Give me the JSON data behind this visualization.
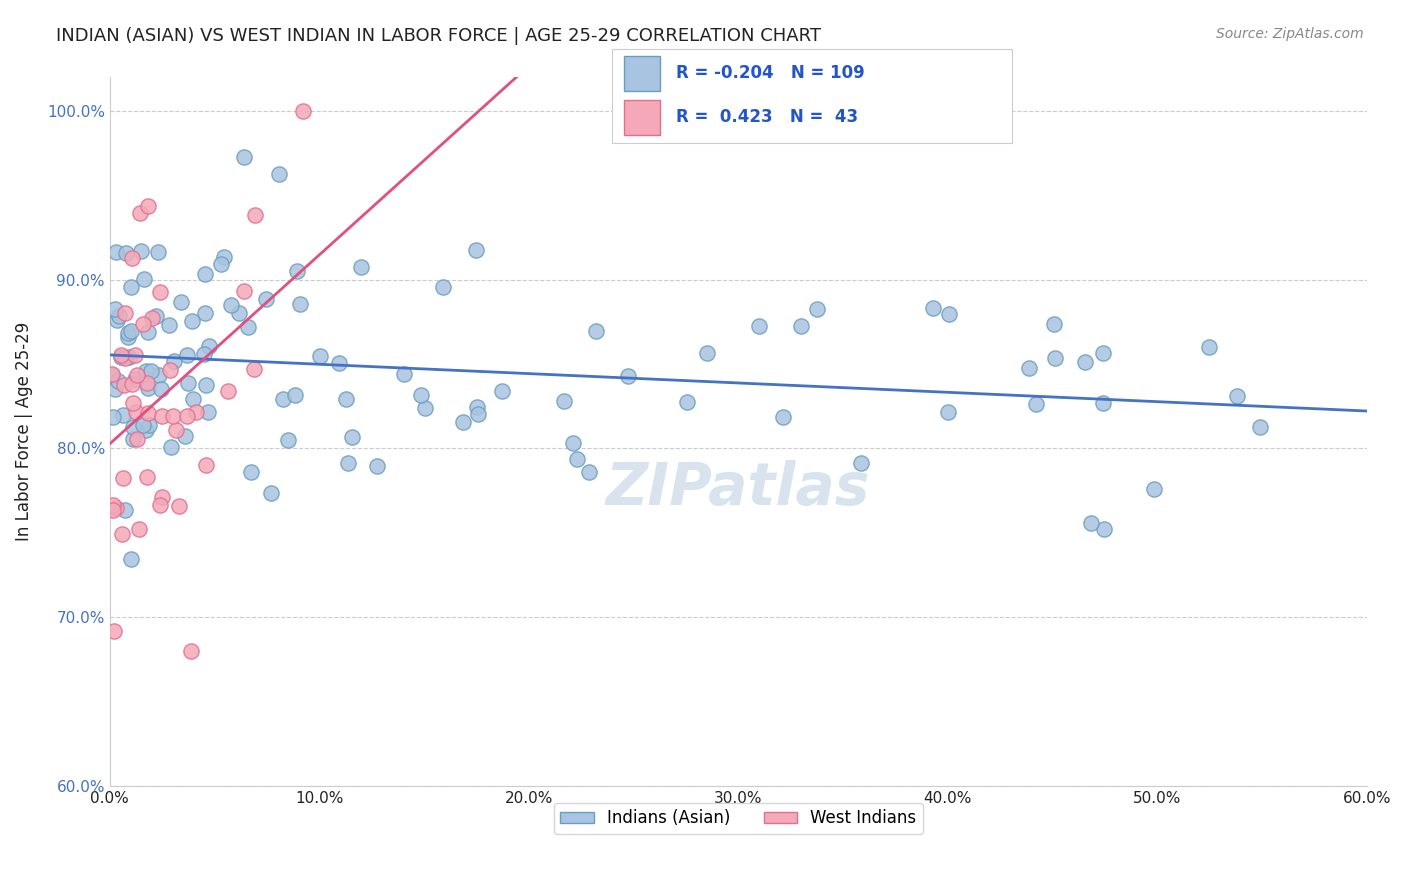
{
  "title": "INDIAN (ASIAN) VS WEST INDIAN IN LABOR FORCE | AGE 25-29 CORRELATION CHART",
  "source": "Source: ZipAtlas.com",
  "xlabel": "",
  "ylabel": "In Labor Force | Age 25-29",
  "xlim": [
    0.0,
    0.6
  ],
  "ylim": [
    0.6,
    1.02
  ],
  "xticks": [
    0.0,
    0.1,
    0.2,
    0.3,
    0.4,
    0.5,
    0.6
  ],
  "xticklabels": [
    "0.0%",
    "10.0%",
    "20.0%",
    "30.0%",
    "40.0%",
    "50.0%",
    "60.0%"
  ],
  "yticks": [
    0.6,
    0.7,
    0.8,
    0.9,
    1.0
  ],
  "yticklabels": [
    "60.0%",
    "70.0%",
    "80.0%",
    "90.0%",
    "100.0%"
  ],
  "blue_color": "#a8c4e0",
  "pink_color": "#f4a8b8",
  "blue_edge": "#6a9ec0",
  "pink_edge": "#e07090",
  "trend_blue": "#4472c4",
  "trend_pink": "#e05080",
  "legend_blue_R": "-0.204",
  "legend_blue_N": "109",
  "legend_pink_R": "0.423",
  "legend_pink_N": "43",
  "legend_label_blue": "Indians (Asian)",
  "legend_label_pink": "West Indians",
  "watermark": "ZIPatlas",
  "watermark_color": "#c8d8e8",
  "grid_color": "#cccccc",
  "title_color": "#222222",
  "axis_label_color": "#222222",
  "ytick_color": "#4472c4",
  "xtick_color": "#222222",
  "source_color": "#888888"
}
